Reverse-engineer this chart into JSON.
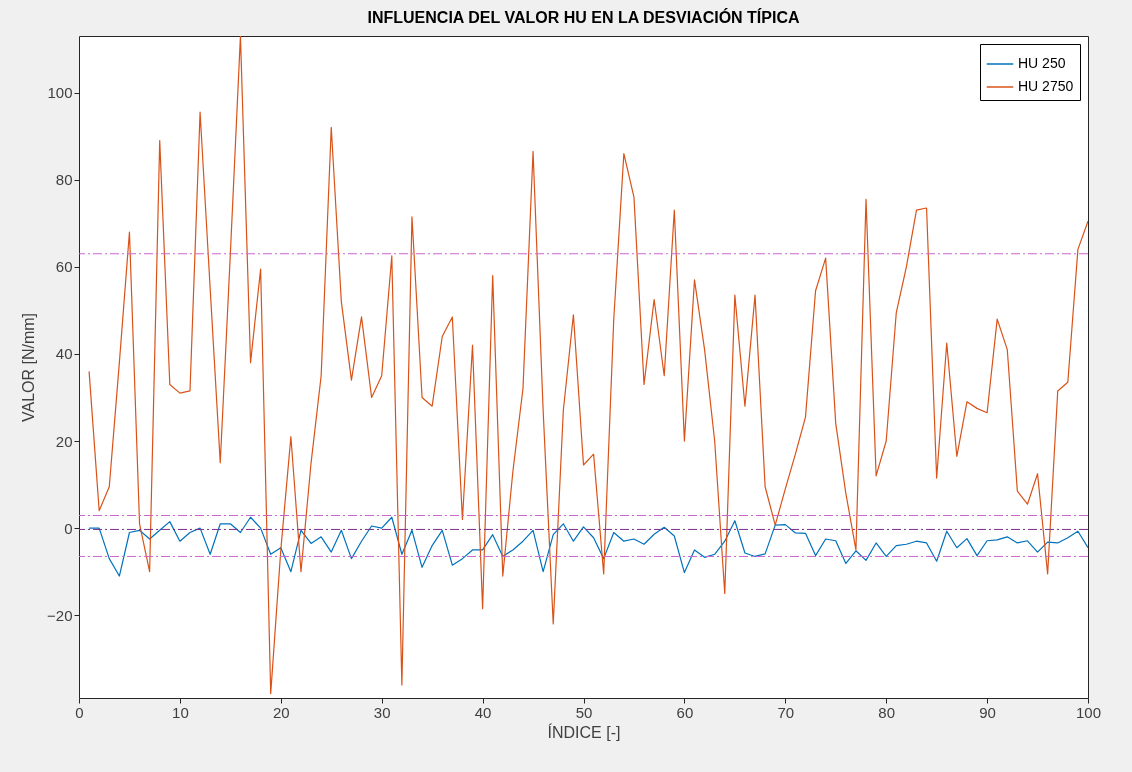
{
  "chart_data": {
    "type": "line",
    "title": "INFLUENCIA DEL VALOR HU EN LA DESVIACIÓN TÍPICA",
    "xlabel": "ÍNDICE [-]",
    "ylabel": "VALOR [N/mm]",
    "x": [
      1,
      2,
      3,
      4,
      5,
      6,
      7,
      8,
      9,
      10,
      11,
      12,
      13,
      14,
      15,
      16,
      17,
      18,
      19,
      20,
      21,
      22,
      23,
      24,
      25,
      26,
      27,
      28,
      29,
      30,
      31,
      32,
      33,
      34,
      35,
      36,
      37,
      38,
      39,
      40,
      41,
      42,
      43,
      44,
      45,
      46,
      47,
      48,
      49,
      50,
      51,
      52,
      53,
      54,
      55,
      56,
      57,
      58,
      59,
      60,
      61,
      62,
      63,
      64,
      65,
      66,
      67,
      68,
      69,
      70,
      71,
      72,
      73,
      74,
      75,
      76,
      77,
      78,
      79,
      80,
      81,
      82,
      83,
      84,
      85,
      86,
      87,
      88,
      89,
      90,
      91,
      92,
      93,
      94,
      95,
      96,
      97,
      98,
      99,
      100
    ],
    "series": [
      {
        "name": "HU 250",
        "color": "#0072bd",
        "values": [
          0,
          0,
          -7,
          -11,
          -1,
          -0.5,
          -2.5,
          -0.5,
          1.5,
          -3,
          -1,
          0,
          -6,
          1,
          1,
          -1,
          2.5,
          0,
          -6,
          -4.5,
          -10,
          -0.5,
          -3.5,
          -2,
          -5.5,
          -0.5,
          -7,
          -3,
          0.5,
          0,
          2.5,
          -6,
          -0.5,
          -9,
          -4,
          -0.5,
          -8.5,
          -7,
          -5,
          -5,
          -1.5,
          -6.5,
          -5,
          -3,
          -0.5,
          -10,
          -1.5,
          1,
          -3,
          0.3,
          -2.2,
          -7,
          -1,
          -3,
          -2.5,
          -3.7,
          -1.4,
          0.2,
          -1.8,
          -10.2,
          -5,
          -6.7,
          -6,
          -3,
          1.7,
          -5.7,
          -6.5,
          -5.9,
          0.7,
          0.8,
          -1.1,
          -1.2,
          -6.3,
          -2.5,
          -2.9,
          -8.1,
          -5.2,
          -7.4,
          -3.4,
          -6.5,
          -4,
          -3.7,
          -3,
          -3.4,
          -7.6,
          -0.7,
          -4.5,
          -2.4,
          -6.3,
          -2.9,
          -2.7,
          -2,
          -3.4,
          -2.9,
          -5.5,
          -3.2,
          -3.4,
          -2.2,
          -0.7,
          -4.5
        ]
      },
      {
        "name": "HU 2750",
        "color": "#d95319",
        "values": [
          36,
          4,
          9.5,
          38,
          68,
          1,
          -10,
          89,
          33,
          31,
          31.5,
          95.5,
          55,
          15,
          63,
          113,
          38,
          59.5,
          -38,
          -5,
          21,
          -10,
          15,
          35,
          92,
          52,
          34,
          48.5,
          30,
          35,
          62.5,
          -36,
          71.5,
          30,
          28,
          44,
          48.5,
          2,
          42,
          -18.5,
          58,
          -11,
          13,
          32,
          86.5,
          27,
          -22,
          27,
          49,
          14.5,
          17,
          -10.5,
          48,
          86,
          76,
          33,
          52.5,
          35,
          73,
          20,
          57,
          41,
          20,
          -15,
          53.5,
          28,
          53.5,
          9.5,
          0.7,
          9,
          17,
          25.5,
          54.5,
          62,
          24,
          8,
          -5,
          75.5,
          12,
          20,
          49.5,
          60,
          73,
          73.5,
          11.5,
          42.5,
          16.5,
          29,
          27.5,
          26.5,
          48,
          41,
          8.5,
          5.5,
          12.5,
          -10.5,
          31.5,
          33.5,
          64,
          70.5
        ]
      }
    ],
    "xlim": [
      0,
      100
    ],
    "xticks": [
      0,
      10,
      20,
      30,
      40,
      50,
      60,
      70,
      80,
      90,
      100
    ],
    "ylim": [
      -39,
      113
    ],
    "yticks": [
      -20,
      0,
      20,
      40,
      60,
      80,
      100
    ],
    "ref_lines": [
      {
        "axis": "y",
        "value": 63,
        "color": "#cc66cc",
        "line_style": "dashdot"
      },
      {
        "axis": "y",
        "value": 2.9,
        "color": "#cc66cc",
        "line_style": "dashdot"
      },
      {
        "axis": "y",
        "value": -0.3,
        "color": "#7e2f8e",
        "line_style": "dashdot"
      },
      {
        "axis": "y",
        "value": -6.5,
        "color": "#cc66cc",
        "line_style": "dashdot"
      }
    ],
    "legend": "top right",
    "grid": false,
    "marker": "none",
    "line_style": "solid"
  }
}
